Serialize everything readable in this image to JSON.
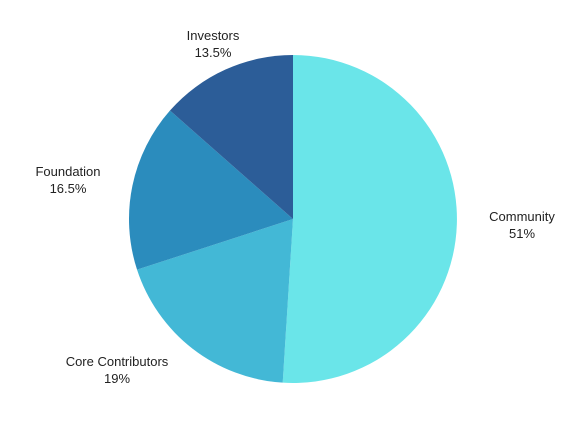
{
  "chart_data": {
    "type": "pie",
    "title": "",
    "slices": [
      {
        "name": "Community",
        "value": 51,
        "value_label": "51%",
        "color": "#6ae5e9"
      },
      {
        "name": "Core Contributors",
        "value": 19,
        "value_label": "19%",
        "color": "#43b8d6"
      },
      {
        "name": "Foundation",
        "value": 16.5,
        "value_label": "16.5%",
        "color": "#2b8cbd"
      },
      {
        "name": "Investors",
        "value": 13.5,
        "value_label": "13.5%",
        "color": "#2c5d98"
      }
    ],
    "start_angle_deg": 0,
    "direction": "clockwise",
    "legend": "none",
    "labels_position": "outside"
  }
}
